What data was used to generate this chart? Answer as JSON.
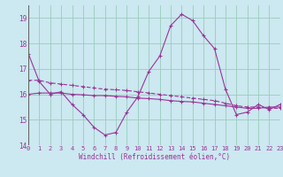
{
  "xlabel": "Windchill (Refroidissement éolien,°C)",
  "bg_color": "#cce8f0",
  "grid_color": "#99ccbb",
  "line_color": "#993399",
  "xlim": [
    0,
    23
  ],
  "ylim": [
    14,
    19.5
  ],
  "yticks": [
    14,
    15,
    16,
    17,
    18,
    19
  ],
  "xticks": [
    0,
    1,
    2,
    3,
    4,
    5,
    6,
    7,
    8,
    9,
    10,
    11,
    12,
    13,
    14,
    15,
    16,
    17,
    18,
    19,
    20,
    21,
    22,
    23
  ],
  "series1": [
    17.6,
    16.5,
    16.0,
    16.1,
    15.6,
    15.2,
    14.7,
    14.4,
    14.5,
    15.3,
    15.9,
    16.9,
    17.5,
    18.7,
    19.15,
    18.9,
    18.3,
    17.8,
    16.2,
    15.2,
    15.3,
    15.6,
    15.4,
    15.6
  ],
  "series2": [
    16.55,
    16.55,
    16.45,
    16.4,
    16.35,
    16.3,
    16.25,
    16.2,
    16.18,
    16.15,
    16.1,
    16.05,
    16.0,
    15.95,
    15.9,
    15.85,
    15.8,
    15.75,
    15.65,
    15.55,
    15.5,
    15.5,
    15.45,
    15.45
  ],
  "series3": [
    16.0,
    16.05,
    16.05,
    16.05,
    16.0,
    15.98,
    15.95,
    15.95,
    15.92,
    15.9,
    15.85,
    15.83,
    15.8,
    15.75,
    15.72,
    15.7,
    15.65,
    15.6,
    15.55,
    15.5,
    15.45,
    15.45,
    15.5,
    15.5
  ]
}
